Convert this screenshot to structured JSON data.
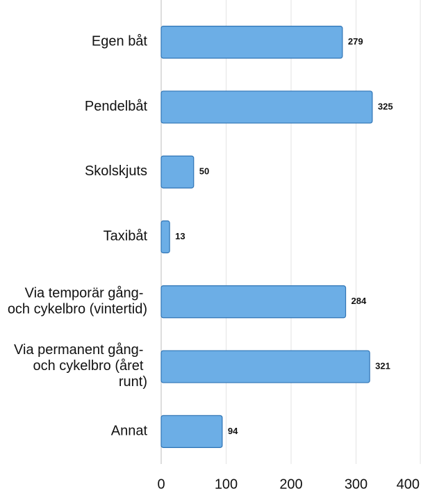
{
  "chart_data": {
    "type": "bar",
    "orientation": "horizontal",
    "categories": [
      "Egen båt",
      "Pendelbåt",
      "Skolskjuts",
      "Taxibåt",
      "Via temporär gång- och cykelbro (vintertid)",
      "Via permanent gång- och cykelbro (året runt)",
      "Annat"
    ],
    "values": [
      279,
      325,
      50,
      13,
      284,
      321,
      94
    ],
    "color": "#6caee6",
    "xlim": [
      0,
      400
    ],
    "xticks": [
      0,
      100,
      200,
      300,
      400
    ],
    "grid": true
  }
}
